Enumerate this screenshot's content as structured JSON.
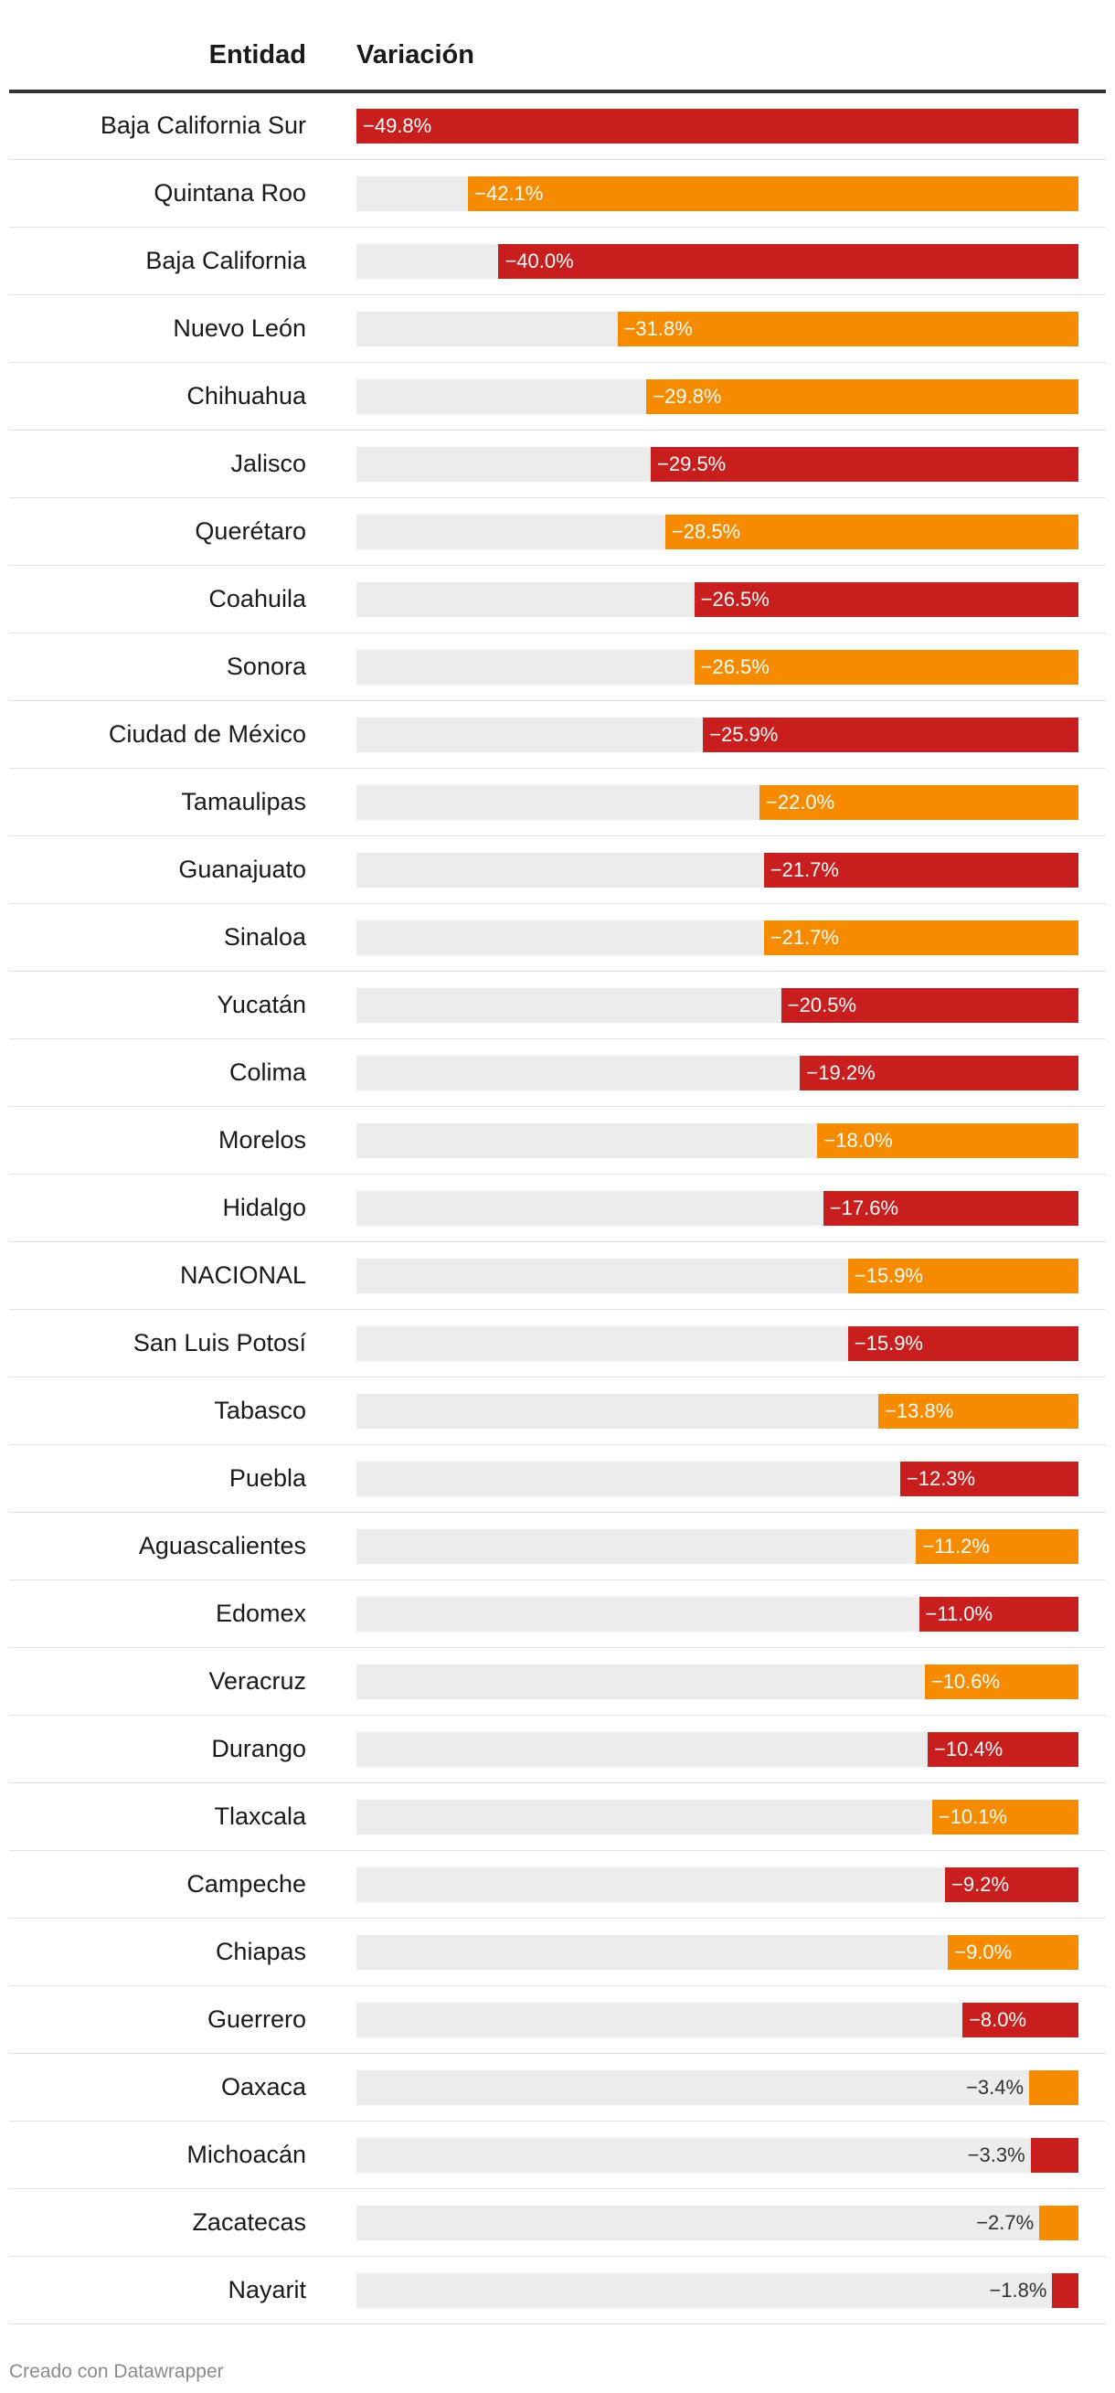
{
  "chart_data": {
    "type": "bar",
    "orientation": "horizontal",
    "header": {
      "entity": "Entidad",
      "variation": "Variación"
    },
    "xlim": [
      -49.8,
      0
    ],
    "colors": {
      "red": "#c81e1e",
      "orange": "#f78b00",
      "track": "#ececec"
    },
    "rows": [
      {
        "label": "Baja California Sur",
        "value": -49.8,
        "text": "−49.8%",
        "color": "red"
      },
      {
        "label": "Quintana Roo",
        "value": -42.1,
        "text": "−42.1%",
        "color": "orange"
      },
      {
        "label": "Baja California",
        "value": -40.0,
        "text": "−40.0%",
        "color": "red"
      },
      {
        "label": "Nuevo León",
        "value": -31.8,
        "text": "−31.8%",
        "color": "orange"
      },
      {
        "label": "Chihuahua",
        "value": -29.8,
        "text": "−29.8%",
        "color": "orange"
      },
      {
        "label": "Jalisco",
        "value": -29.5,
        "text": "−29.5%",
        "color": "red"
      },
      {
        "label": "Querétaro",
        "value": -28.5,
        "text": "−28.5%",
        "color": "orange"
      },
      {
        "label": "Coahuila",
        "value": -26.5,
        "text": "−26.5%",
        "color": "red"
      },
      {
        "label": "Sonora",
        "value": -26.5,
        "text": "−26.5%",
        "color": "orange"
      },
      {
        "label": "Ciudad de México",
        "value": -25.9,
        "text": "−25.9%",
        "color": "red"
      },
      {
        "label": "Tamaulipas",
        "value": -22.0,
        "text": "−22.0%",
        "color": "orange"
      },
      {
        "label": "Guanajuato",
        "value": -21.7,
        "text": "−21.7%",
        "color": "red"
      },
      {
        "label": "Sinaloa",
        "value": -21.7,
        "text": "−21.7%",
        "color": "orange"
      },
      {
        "label": "Yucatán",
        "value": -20.5,
        "text": "−20.5%",
        "color": "red"
      },
      {
        "label": "Colima",
        "value": -19.2,
        "text": "−19.2%",
        "color": "red"
      },
      {
        "label": "Morelos",
        "value": -18.0,
        "text": "−18.0%",
        "color": "orange"
      },
      {
        "label": "Hidalgo",
        "value": -17.6,
        "text": "−17.6%",
        "color": "red"
      },
      {
        "label": "NACIONAL",
        "value": -15.9,
        "text": "−15.9%",
        "color": "orange"
      },
      {
        "label": "San Luis Potosí",
        "value": -15.9,
        "text": "−15.9%",
        "color": "red"
      },
      {
        "label": "Tabasco",
        "value": -13.8,
        "text": "−13.8%",
        "color": "orange"
      },
      {
        "label": "Puebla",
        "value": -12.3,
        "text": "−12.3%",
        "color": "red"
      },
      {
        "label": "Aguascalientes",
        "value": -11.2,
        "text": "−11.2%",
        "color": "orange"
      },
      {
        "label": "Edomex",
        "value": -11.0,
        "text": "−11.0%",
        "color": "red"
      },
      {
        "label": "Veracruz",
        "value": -10.6,
        "text": "−10.6%",
        "color": "orange"
      },
      {
        "label": "Durango",
        "value": -10.4,
        "text": "−10.4%",
        "color": "red"
      },
      {
        "label": "Tlaxcala",
        "value": -10.1,
        "text": "−10.1%",
        "color": "orange"
      },
      {
        "label": "Campeche",
        "value": -9.2,
        "text": "−9.2%",
        "color": "red"
      },
      {
        "label": "Chiapas",
        "value": -9.0,
        "text": "−9.0%",
        "color": "orange"
      },
      {
        "label": "Guerrero",
        "value": -8.0,
        "text": "−8.0%",
        "color": "red"
      },
      {
        "label": "Oaxaca",
        "value": -3.4,
        "text": "−3.4%",
        "color": "orange"
      },
      {
        "label": "Michoacán",
        "value": -3.3,
        "text": "−3.3%",
        "color": "red"
      },
      {
        "label": "Zacatecas",
        "value": -2.7,
        "text": "−2.7%",
        "color": "orange"
      },
      {
        "label": "Nayarit",
        "value": -1.8,
        "text": "−1.8%",
        "color": "red"
      }
    ]
  },
  "footer": {
    "credit": "Creado con Datawrapper"
  }
}
